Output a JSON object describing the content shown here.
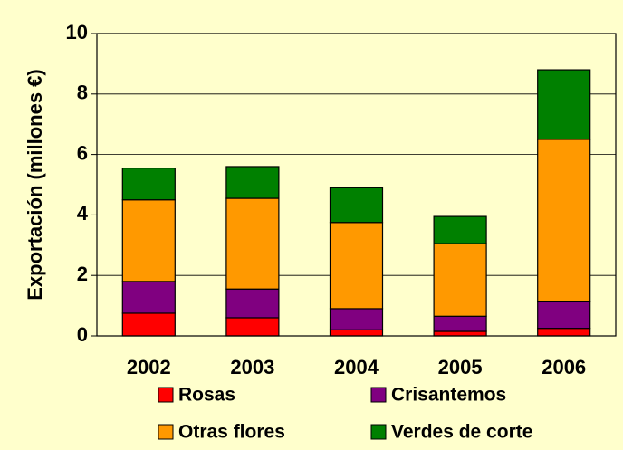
{
  "chart_data": {
    "type": "stacked_bar",
    "y_label": "Exportación (millones €)",
    "categories": [
      "2002",
      "2003",
      "2004",
      "2005",
      "2006"
    ],
    "series": [
      {
        "name": "Rosas",
        "color": "#ff0000",
        "values": [
          0.75,
          0.6,
          0.2,
          0.15,
          0.25
        ]
      },
      {
        "name": "Crisantemos",
        "color": "#800080",
        "values": [
          1.05,
          0.95,
          0.7,
          0.5,
          0.9
        ]
      },
      {
        "name": "Otras flores",
        "color": "#ff9900",
        "values": [
          2.7,
          3.0,
          2.85,
          2.4,
          5.35
        ]
      },
      {
        "name": "Verdes de corte",
        "color": "#008000",
        "values": [
          1.05,
          1.05,
          1.15,
          0.9,
          2.3
        ]
      }
    ],
    "ylim": [
      0,
      10
    ],
    "yticks": [
      0,
      2,
      4,
      6,
      8,
      10
    ],
    "grid": true
  }
}
